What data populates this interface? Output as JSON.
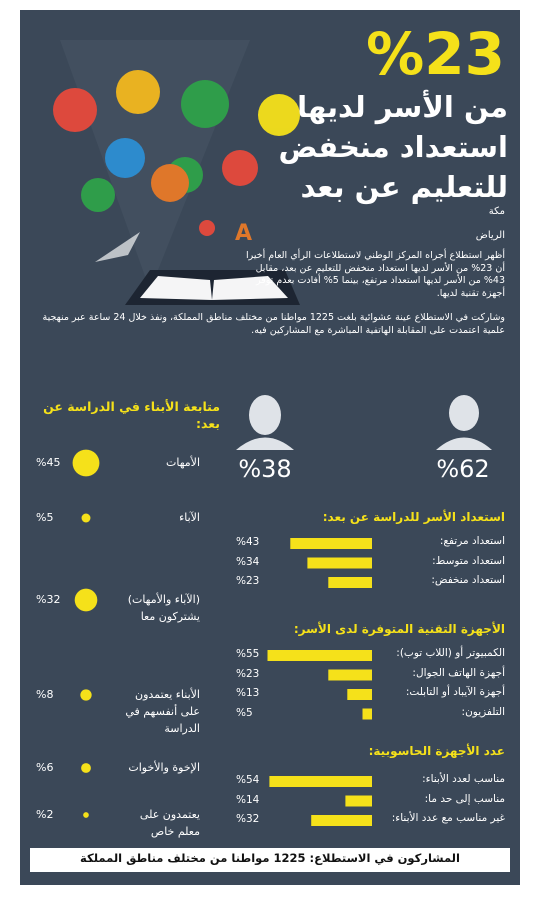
{
  "header": {
    "headline": "%23",
    "title_lines": [
      "من الأسر لديها",
      "استعداد منخفض",
      "للتعليم عن بعد"
    ],
    "places": [
      "مكة",
      "الرياض"
    ]
  },
  "intro": [
    "أظهر استطلاع أجراه المركز الوطني لاستطلاعات الرأي العام أخيرا أن 23% من الأسر لديها استعداد منخفض للتعليم عن بعد، مقابل 43% من الأسر لديها استعداد مرتفع، بينما 5% أفادت بعدم توفر أجهزة تقنية لديها.",
    "وشاركت في الاستطلاع عينة عشوائية بلغت 1225 مواطنا من مختلف مناطق المملكة، ونفذ خلال 24 ساعة عبر منهجية علمية اعتمدت على المقابلة الهاتفية المباشرة مع المشاركين فيه."
  ],
  "gender_split": [
    "%38",
    "%62"
  ],
  "footer": "المشاركون في الاستطلاع: 1225 مواطنا من مختلف مناطق المملكة",
  "chart_data": [
    {
      "type": "bubble",
      "title": "متابعة الأبناء في الدراسة عن بعد:",
      "color": "#f5e11a",
      "categories": [
        "الأمهات",
        "الآباء",
        "(الآباء والأمهات) يشتركون معا",
        "الأبناء يعتمدون على أنفسهم في الدراسة",
        "الإخوة والأخوات",
        "يعتمدون على معلم خاص"
      ],
      "values": [
        45,
        5,
        32,
        8,
        6,
        2
      ],
      "value_labels": [
        "%45",
        "%5",
        "%32",
        "%8",
        "%6",
        "%2"
      ]
    },
    {
      "type": "bar",
      "title": "استعداد الأسر للدراسة عن بعد:",
      "color": "#f5e11a",
      "categories": [
        "استعداد مرتفع:",
        "استعداد متوسط:",
        "استعداد منخفض:"
      ],
      "values": [
        43,
        34,
        23
      ],
      "value_labels": [
        "%43",
        "%34",
        "%23"
      ]
    },
    {
      "type": "bar",
      "title": "الأجهزة التقنية المتوفرة لدى الأسر:",
      "color": "#f5e11a",
      "categories": [
        "الكمبيوتر أو (اللاب توب):",
        "أجهزة الهاتف الجوال:",
        "أجهزة الآيباد أو التابلت:",
        "التلفزيون:"
      ],
      "values": [
        55,
        23,
        13,
        5
      ],
      "value_labels": [
        "%55",
        "%23",
        "%13",
        "%5"
      ]
    },
    {
      "type": "bar",
      "title": "عدد الأجهزة الحاسوبية:",
      "color": "#f5e11a",
      "categories": [
        "مناسب لعدد الأبناء:",
        "مناسب إلى حد ما:",
        "غير مناسب مع عدد الأبناء:"
      ],
      "values": [
        54,
        14,
        32
      ],
      "value_labels": [
        "%54",
        "%14",
        "%32"
      ]
    }
  ]
}
